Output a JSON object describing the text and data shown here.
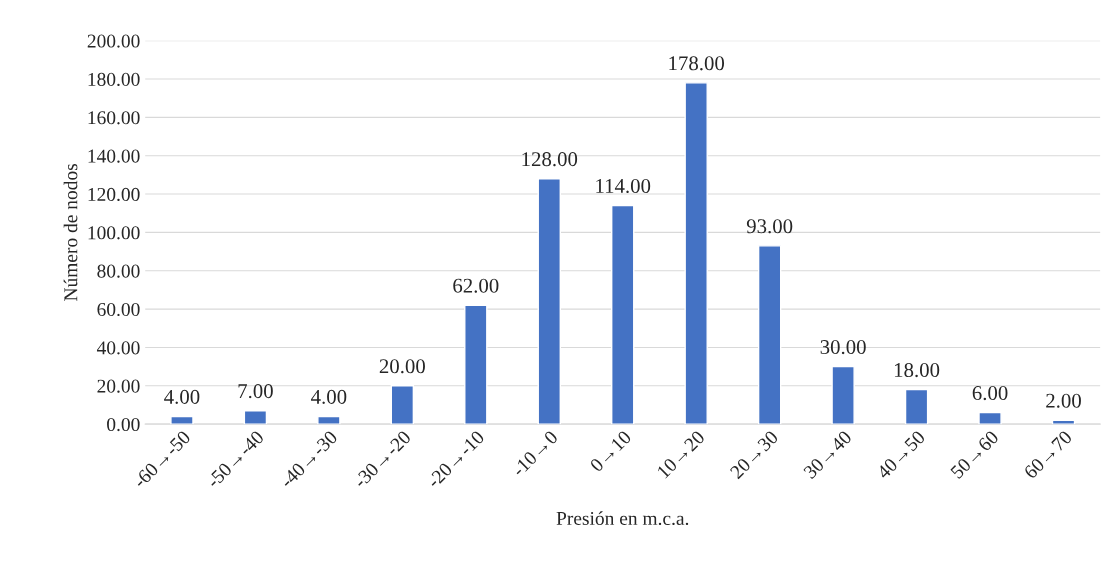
{
  "chart_data": {
    "type": "bar",
    "xlabel": "Presión en m.c.a.",
    "ylabel": "Número de nodos",
    "categories": [
      "-60→-50",
      "-50→-40",
      "-40→-30",
      "-30→-20",
      "-20→-10",
      "-10→0",
      "0→10",
      "10→20",
      "20→30",
      "30→40",
      "40→50",
      "50→60",
      "60→70"
    ],
    "values": [
      4,
      7,
      4,
      20,
      62,
      128,
      114,
      178,
      93,
      30,
      18,
      6,
      2
    ],
    "value_labels": [
      "4.00",
      "7.00",
      "4.00",
      "20.00",
      "62.00",
      "128.00",
      "114.00",
      "178.00",
      "93.00",
      "30.00",
      "18.00",
      "6.00",
      "2.00"
    ],
    "color": "#4472c4",
    "ylim": [
      0,
      200
    ],
    "yticks": [
      {
        "value": 0,
        "label": "0.00"
      },
      {
        "value": 20,
        "label": "20.00"
      },
      {
        "value": 40,
        "label": "40.00"
      },
      {
        "value": 60,
        "label": "60.00"
      },
      {
        "value": 80,
        "label": "80.00"
      },
      {
        "value": 100,
        "label": "100.00"
      },
      {
        "value": 120,
        "label": "120.00"
      },
      {
        "value": 140,
        "label": "140.00"
      },
      {
        "value": 160,
        "label": "160.00"
      },
      {
        "value": 180,
        "label": "180.00"
      },
      {
        "value": 200,
        "label": "200.00"
      }
    ],
    "grid": "y"
  }
}
